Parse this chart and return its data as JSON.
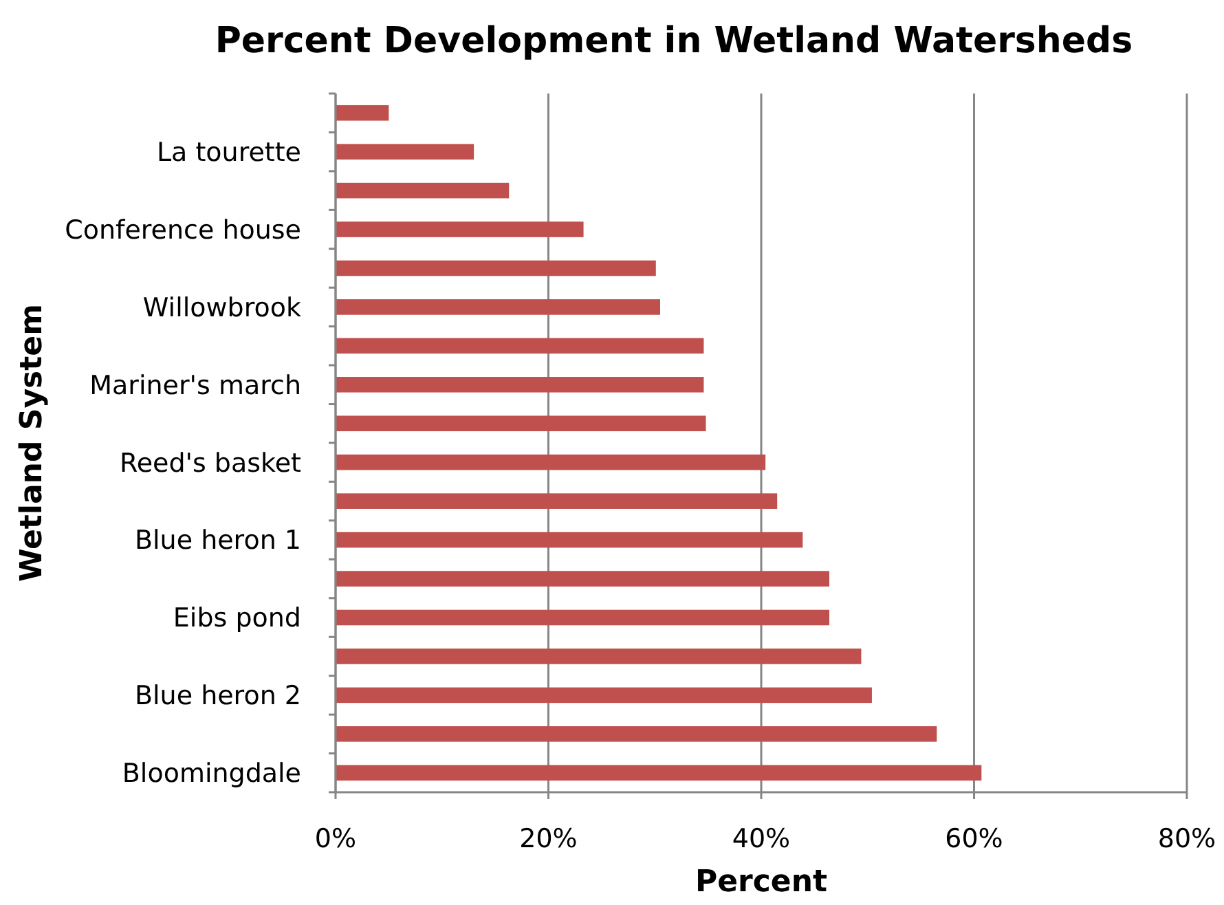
{
  "chart_data": {
    "type": "bar",
    "orientation": "horizontal",
    "title": "Percent Development in Wetland Watersheds",
    "xlabel": "Percent",
    "ylabel": "Wetland System",
    "categories": [
      null,
      "La tourette",
      null,
      "Conference house",
      null,
      "Willowbrook",
      null,
      "Mariner's march",
      null,
      "Reed's basket",
      null,
      "Blue heron 1",
      null,
      "Eibs pond",
      null,
      "Blue heron 2",
      null,
      "Bloomingdale"
    ],
    "values": [
      5,
      13,
      16.3,
      23.3,
      30.1,
      30.5,
      34.6,
      34.6,
      34.8,
      40.4,
      41.5,
      43.9,
      46.4,
      46.4,
      49.4,
      50.4,
      56.5,
      60.7
    ],
    "color": "#c0504d",
    "xlim": [
      0,
      80
    ],
    "xticks": [
      {
        "value": 0,
        "label": "0%"
      },
      {
        "value": 20,
        "label": "20%"
      },
      {
        "value": 40,
        "label": "40%"
      },
      {
        "value": 60,
        "label": "60%"
      },
      {
        "value": 80,
        "label": "80%"
      }
    ],
    "grid": "x"
  }
}
